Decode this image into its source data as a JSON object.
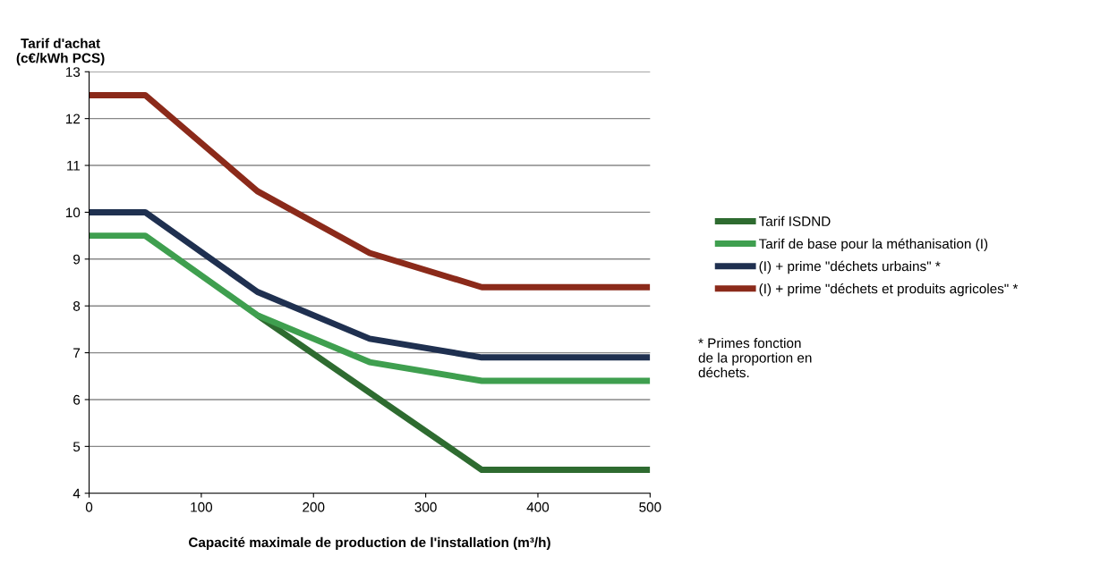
{
  "chart_data": {
    "type": "line",
    "ylabel": "Tarif d'achat\n(c€/kWh PCS)",
    "xlabel": "Capacité maximale de production de l'installation (m³/h)",
    "x": [
      0,
      50,
      150,
      250,
      350,
      500
    ],
    "series": [
      {
        "name": "Tarif ISDND",
        "color": "#2e6b30",
        "x": [
          150,
          250,
          350,
          500
        ],
        "values": [
          7.8,
          6.15,
          4.5,
          4.5
        ]
      },
      {
        "name": "Tarif de base pour la méthanisation (I)",
        "color": "#3f9f4f",
        "values": [
          9.5,
          9.5,
          7.8,
          6.8,
          6.4,
          6.4
        ]
      },
      {
        "name": "(I) + prime \"déchets urbains\" *",
        "color": "#1f3050",
        "values": [
          10,
          10,
          8.3,
          7.3,
          6.9,
          6.9
        ]
      },
      {
        "name": "(I) + prime \"déchets et produits agricoles\" *",
        "color": "#8b2a1a",
        "values": [
          12.5,
          12.5,
          10.45,
          9.13,
          8.4,
          8.4
        ]
      }
    ],
    "xlim": [
      0,
      500
    ],
    "xticks": [
      0,
      100,
      200,
      300,
      400,
      500
    ],
    "ylim": [
      4,
      13
    ],
    "yticks": [
      4,
      5,
      6,
      7,
      8,
      9,
      10,
      11,
      12,
      13
    ],
    "grid": "y",
    "legend": "right",
    "marker": "none",
    "line_style": "solid",
    "annotations": [
      "* Primes fonction\nde la proportion en\ndéchets."
    ]
  }
}
